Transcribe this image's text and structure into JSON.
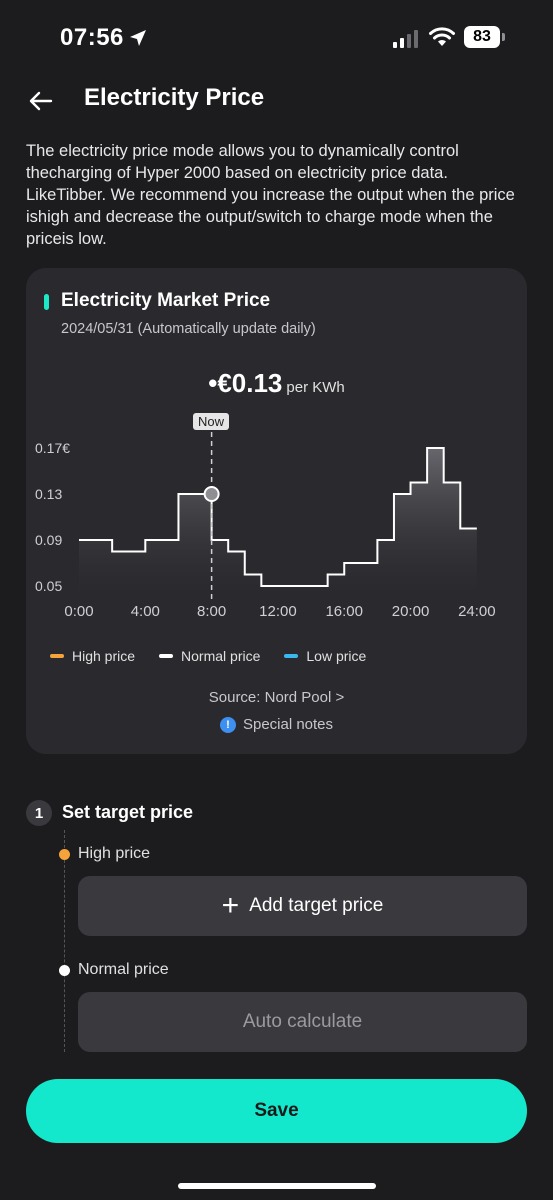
{
  "status_bar": {
    "time": "07:56",
    "battery": "83"
  },
  "header": {
    "title": "Electricity Price"
  },
  "intro": "The electricity price mode allows you to dynamically control thecharging of Hyper 2000 based on electricity price data. LikeTibber. We recommend you increase the output when the price ishigh and decrease the output/switch to charge mode when the priceis low.",
  "market_card": {
    "title": "Electricity Market Price",
    "date": "2024/05/31 (Automatically update daily)",
    "current_bullet": "•",
    "current_price": "€0.13",
    "unit": "per KWh",
    "now_label": "Now",
    "source": "Source: Nord Pool >",
    "notes": "Special notes",
    "info_glyph": "!",
    "legend": [
      {
        "label": "High price",
        "color": "#f5a33b"
      },
      {
        "label": "Normal price",
        "color": "#ffffff"
      },
      {
        "label": "Low price",
        "color": "#39b8f0"
      }
    ]
  },
  "chart_data": {
    "type": "line",
    "step": true,
    "x": [
      0,
      1,
      2,
      3,
      4,
      5,
      6,
      7,
      8,
      9,
      10,
      11,
      12,
      13,
      14,
      15,
      16,
      17,
      18,
      19,
      20,
      21,
      22,
      23
    ],
    "values": [
      0.09,
      0.09,
      0.08,
      0.08,
      0.09,
      0.09,
      0.13,
      0.13,
      0.09,
      0.08,
      0.06,
      0.05,
      0.05,
      0.05,
      0.05,
      0.06,
      0.07,
      0.07,
      0.09,
      0.13,
      0.14,
      0.17,
      0.14,
      0.1
    ],
    "x_ticks": [
      "0:00",
      "4:00",
      "8:00",
      "12:00",
      "16:00",
      "20:00",
      "24:00"
    ],
    "y_ticks": [
      "0.17€",
      "0.13",
      "0.09",
      "0.05"
    ],
    "y_tick_values": [
      0.17,
      0.13,
      0.09,
      0.05
    ],
    "xlim": [
      0,
      26
    ],
    "ylim": [
      0.05,
      0.17
    ],
    "current_x": 8,
    "current_value": 0.13
  },
  "target": {
    "step_number": "1",
    "title": "Set target price",
    "high_label": "High price",
    "high_color": "#f5a33b",
    "add_label": "Add target price",
    "plus_glyph": "+",
    "normal_label": "Normal price",
    "normal_color": "#ffffff",
    "auto_label": "Auto calculate"
  },
  "save_label": "Save"
}
